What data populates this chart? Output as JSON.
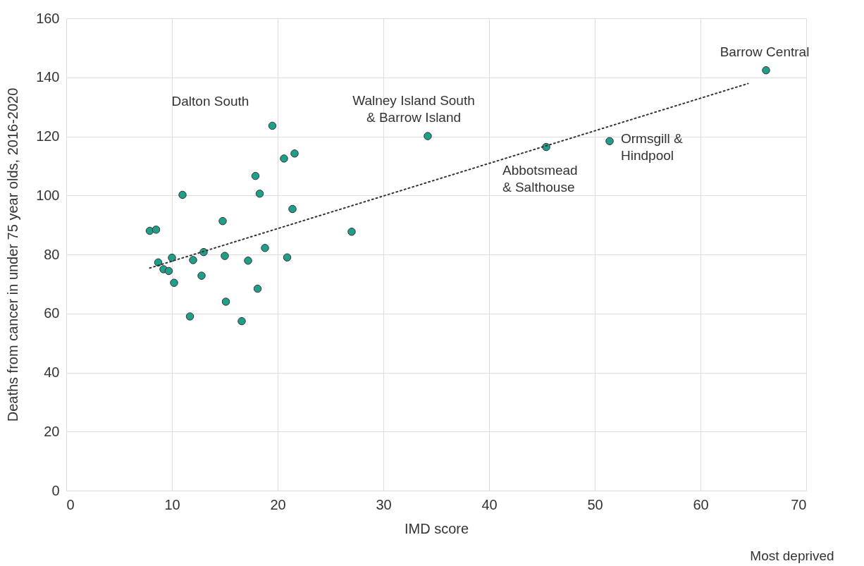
{
  "chart_data": {
    "type": "scatter",
    "xlabel": "IMD score",
    "ylabel": "Deaths from cancer in under 75 year olds, 2016-2020",
    "xlim": [
      0,
      70
    ],
    "xticks": [
      0,
      10,
      20,
      30,
      40,
      50,
      60,
      70
    ],
    "ylim": [
      0,
      160
    ],
    "yticks": [
      0,
      20,
      40,
      60,
      80,
      100,
      120,
      140,
      160
    ],
    "grid": true,
    "series": [
      {
        "marker": "circle",
        "color": "#1f9e89",
        "x": [
          19.5,
          20.6,
          21.6,
          17.9,
          18.3,
          11.0,
          21.4,
          14.8,
          7.9,
          8.5,
          18.8,
          13.0,
          10.0,
          15.0,
          20.9,
          8.7,
          12.0,
          17.2,
          9.2,
          9.7,
          12.8,
          10.2,
          18.1,
          15.1,
          11.7,
          16.6,
          27.0,
          34.2,
          45.4,
          51.4,
          66.2
        ],
        "values": [
          123.6,
          112.5,
          114.2,
          106.6,
          100.6,
          100.2,
          95.4,
          91.3,
          88.0,
          88.4,
          82.2,
          80.8,
          78.9,
          79.5,
          79.0,
          77.3,
          78.1,
          77.9,
          75.0,
          74.4,
          72.8,
          70.4,
          68.4,
          64.0,
          59.0,
          57.4,
          87.7,
          120.1,
          116.4,
          118.4,
          142.4
        ]
      },
      {
        "type": "line",
        "marker": "none",
        "color": "#333333",
        "line_style": "dotted",
        "x": [
          7.9,
          64.5
        ],
        "values": [
          75.4,
          137.9
        ]
      }
    ],
    "annotations": [
      {
        "text": "Dalton South",
        "x": 19.5,
        "y": 123.6
      },
      {
        "text": "Walney Island South\n& Barrow Island",
        "x": 34.2,
        "y": 120.1
      },
      {
        "text": "Abbotsmead\n& Salthouse",
        "x": 45.4,
        "y": 116.4
      },
      {
        "text": "Ormsgill &\nHindpool",
        "x": 51.4,
        "y": 118.4
      },
      {
        "text": "Barrow Central",
        "x": 66.2,
        "y": 142.4
      },
      "Most deprived"
    ]
  }
}
